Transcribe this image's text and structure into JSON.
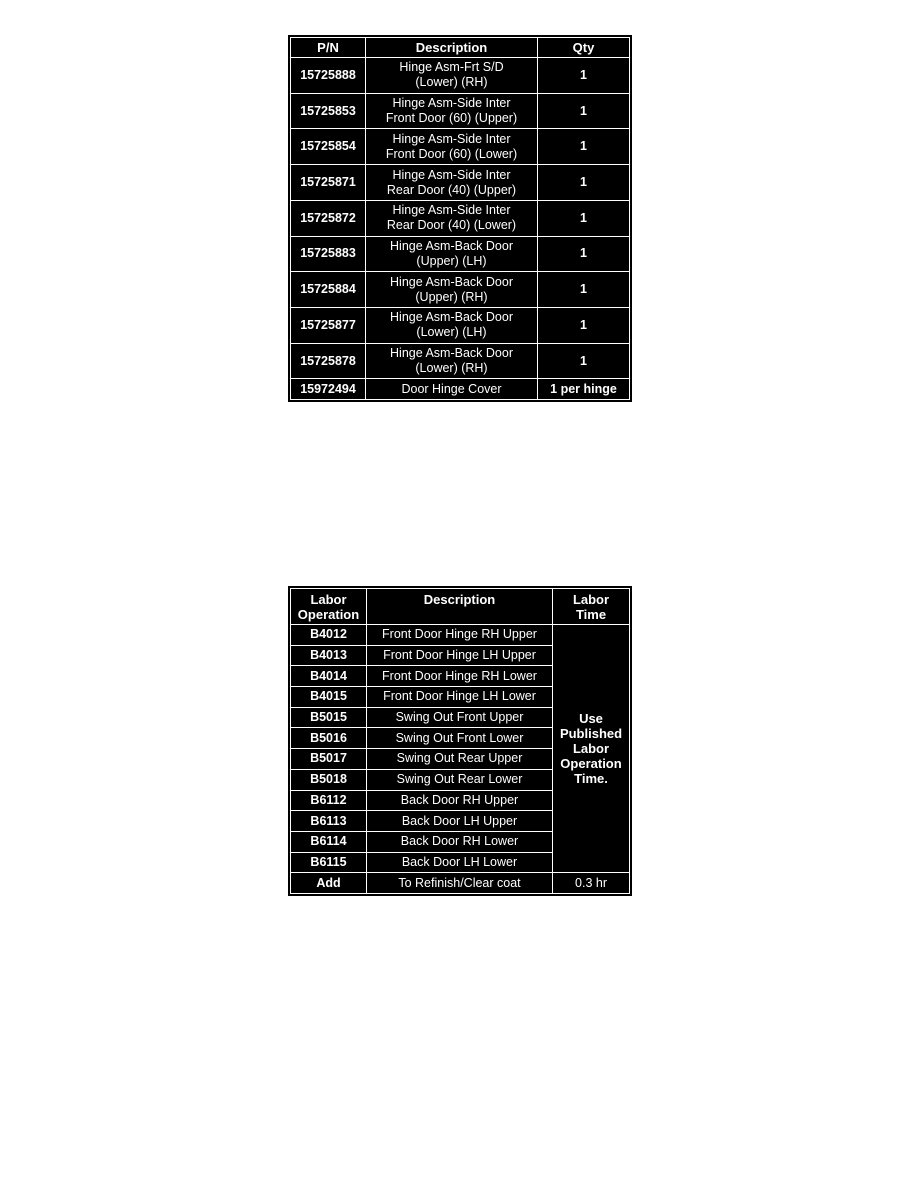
{
  "parts_table": {
    "headers": [
      "P/N",
      "Description",
      "Qty"
    ],
    "rows": [
      {
        "pn": "15725888",
        "desc1": "Hinge Asm-Frt S/D",
        "desc2": "(Lower) (RH)",
        "qty": "1"
      },
      {
        "pn": "15725853",
        "desc1": "Hinge Asm-Side Inter",
        "desc2": "Front Door (60) (Upper)",
        "qty": "1"
      },
      {
        "pn": "15725854",
        "desc1": "Hinge Asm-Side Inter",
        "desc2": "Front Door (60) (Lower)",
        "qty": "1"
      },
      {
        "pn": "15725871",
        "desc1": "Hinge Asm-Side Inter",
        "desc2": "Rear Door (40) (Upper)",
        "qty": "1"
      },
      {
        "pn": "15725872",
        "desc1": "Hinge Asm-Side Inter",
        "desc2": "Rear Door (40) (Lower)",
        "qty": "1"
      },
      {
        "pn": "15725883",
        "desc1": "Hinge Asm-Back Door",
        "desc2": "(Upper) (LH)",
        "qty": "1"
      },
      {
        "pn": "15725884",
        "desc1": "Hinge Asm-Back Door",
        "desc2": "(Upper) (RH)",
        "qty": "1"
      },
      {
        "pn": "15725877",
        "desc1": "Hinge Asm-Back Door",
        "desc2": "(Lower) (LH)",
        "qty": "1"
      },
      {
        "pn": "15725878",
        "desc1": "Hinge Asm-Back Door",
        "desc2": "(Lower) (RH)",
        "qty": "1"
      },
      {
        "pn": "15972494",
        "desc1": "Door Hinge Cover",
        "desc2": "",
        "qty": "1 per hinge"
      }
    ]
  },
  "labor_table": {
    "headers": {
      "op1": "Labor",
      "op2": "Operation",
      "desc": "Description",
      "time1": "Labor",
      "time2": "Time"
    },
    "rows": [
      {
        "op": "B4012",
        "desc": "Front Door Hinge RH Upper"
      },
      {
        "op": "B4013",
        "desc": "Front Door Hinge LH Upper"
      },
      {
        "op": "B4014",
        "desc": "Front Door Hinge RH Lower"
      },
      {
        "op": "B4015",
        "desc": "Front Door Hinge LH Lower"
      },
      {
        "op": "B5015",
        "desc": "Swing Out Front Upper"
      },
      {
        "op": "B5016",
        "desc": "Swing Out Front Lower"
      },
      {
        "op": "B5017",
        "desc": "Swing Out Rear Upper"
      },
      {
        "op": "B5018",
        "desc": "Swing Out Rear Lower"
      },
      {
        "op": "B6112",
        "desc": "Back Door RH Upper"
      },
      {
        "op": "B6113",
        "desc": "Back Door LH Upper"
      },
      {
        "op": "B6114",
        "desc": "Back Door RH Lower"
      },
      {
        "op": "B6115",
        "desc": "Back Door LH Lower"
      }
    ],
    "merged_time": [
      "Use",
      "Published",
      "Labor",
      "Operation",
      "Time."
    ],
    "footer": {
      "op": "Add",
      "desc": "To Refinish/Clear coat",
      "time": "0.3 hr"
    }
  }
}
